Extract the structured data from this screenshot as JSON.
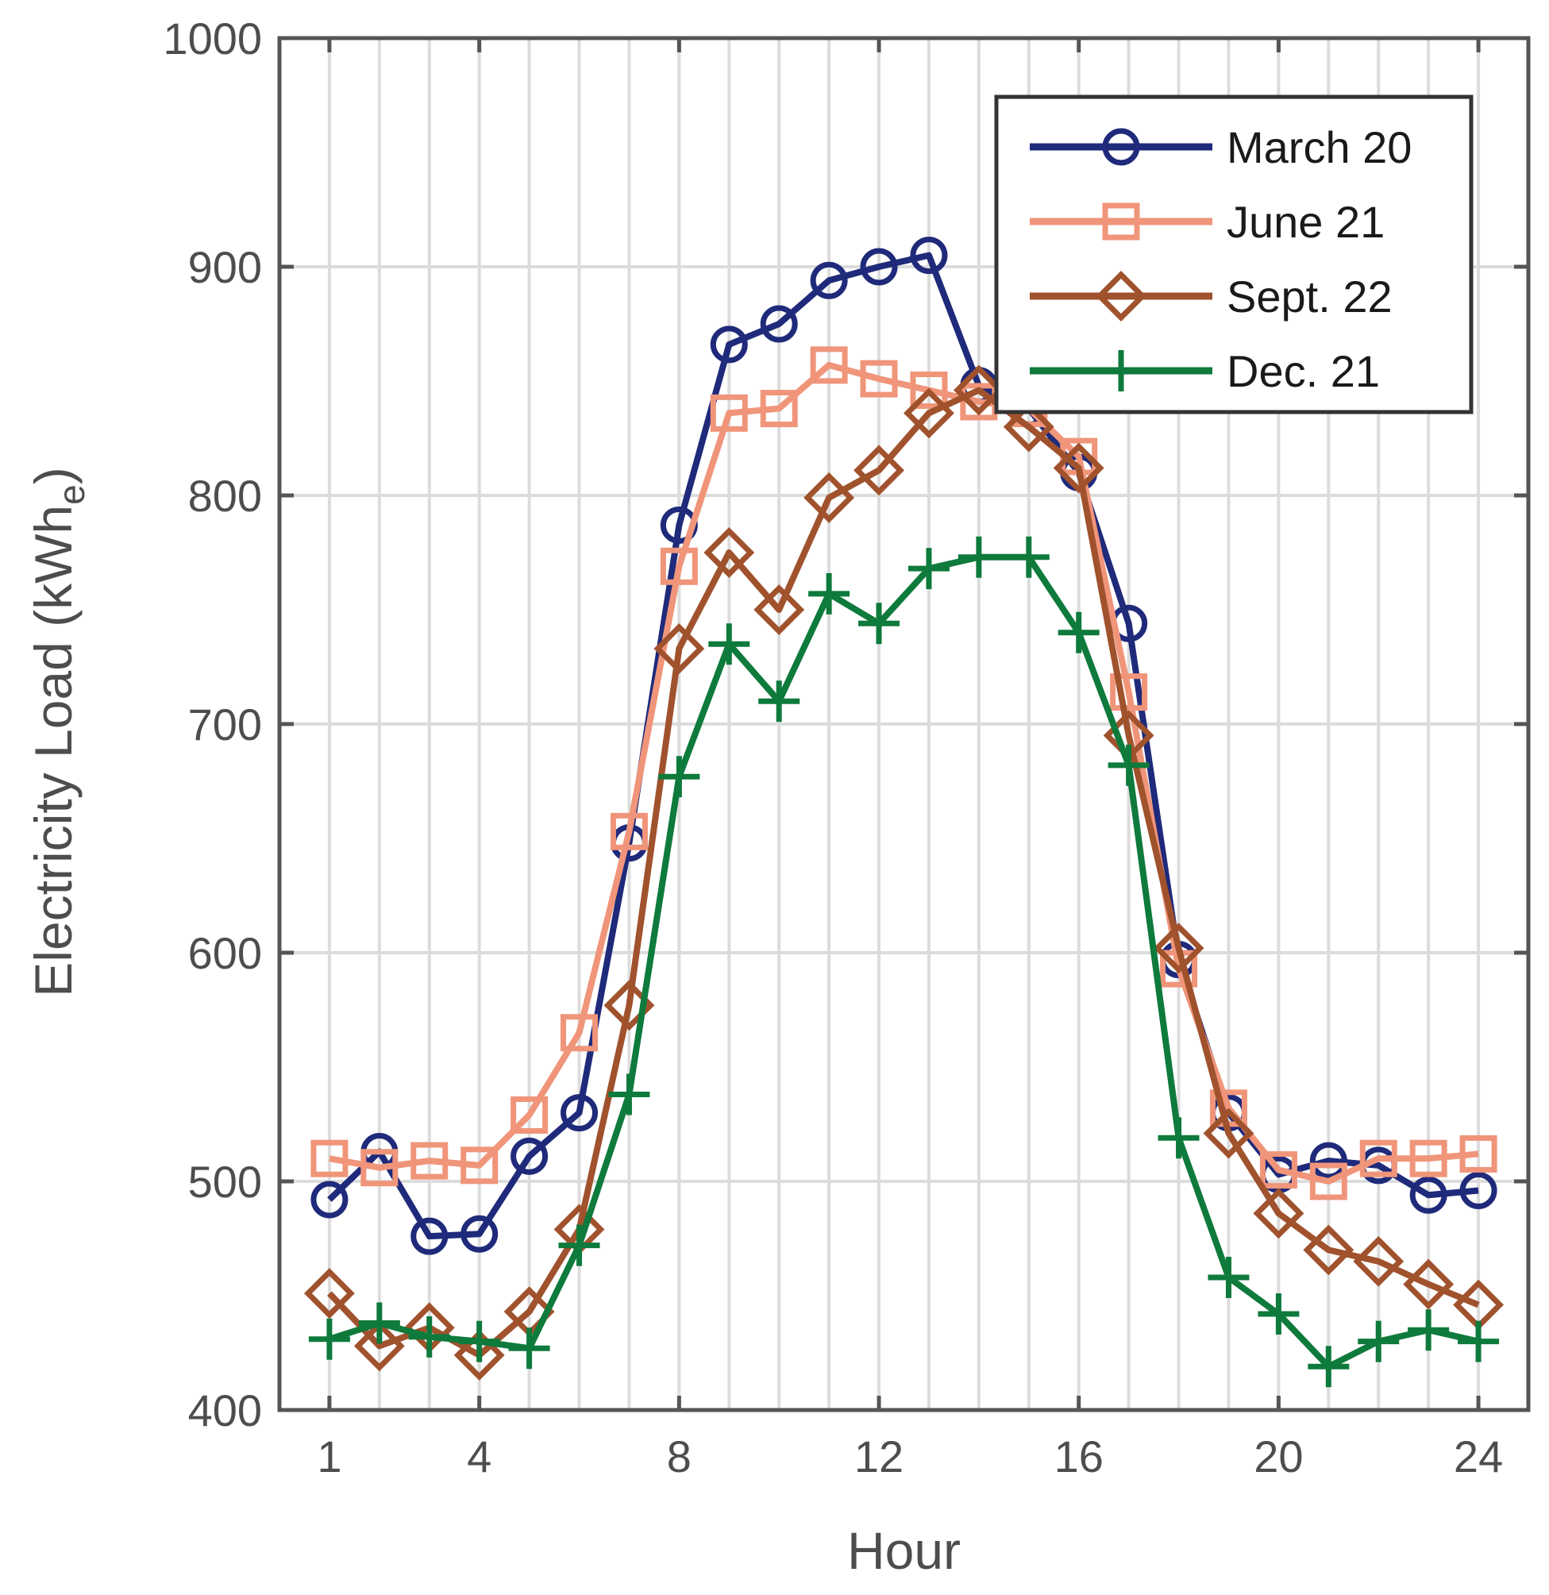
{
  "chart_data": {
    "type": "line",
    "title": "",
    "xlabel": "Hour",
    "ylabel_main": "Electricity Load (kWh",
    "ylabel_sub": "e",
    "ylabel_close": ")",
    "xlim": [
      0,
      25
    ],
    "ylim": [
      400,
      1000
    ],
    "xticks": [
      1,
      4,
      8,
      12,
      16,
      20,
      24
    ],
    "xtick_labels": [
      "1",
      "4",
      "8",
      "12",
      "16",
      "20",
      "24"
    ],
    "yticks": [
      400,
      500,
      600,
      700,
      800,
      900,
      1000
    ],
    "ytick_labels": [
      "400",
      "500",
      "600",
      "700",
      "800",
      "900",
      "1000"
    ],
    "grid": true,
    "legend_position": "top-right",
    "x": [
      1,
      2,
      3,
      4,
      5,
      6,
      7,
      8,
      9,
      10,
      11,
      12,
      13,
      14,
      15,
      16,
      17,
      18,
      19,
      20,
      21,
      22,
      23,
      24
    ],
    "series": [
      {
        "name": "March 20",
        "color": "#1f2a7a",
        "marker": "circle",
        "values": [
          492,
          513,
          476,
          477,
          511,
          530,
          648,
          787,
          866,
          875,
          894,
          900,
          905,
          848,
          838,
          810,
          744,
          597,
          530,
          503,
          509,
          507,
          494,
          496
        ]
      },
      {
        "name": "June 21",
        "color": "#f0957a",
        "marker": "square",
        "values": [
          510,
          506,
          509,
          507,
          529,
          565,
          653,
          769,
          836,
          838,
          857,
          851,
          846,
          841,
          838,
          817,
          714,
          593,
          532,
          505,
          500,
          510,
          510,
          512
        ]
      },
      {
        "name": "Sept. 22",
        "color": "#a0522d",
        "marker": "diamond",
        "values": [
          451,
          428,
          436,
          424,
          443,
          479,
          577,
          733,
          775,
          750,
          799,
          811,
          836,
          846,
          830,
          812,
          695,
          602,
          521,
          486,
          470,
          465,
          455,
          446
        ]
      },
      {
        "name": "Dec. 21",
        "color": "#0e7a3c",
        "marker": "plus",
        "values": [
          431,
          438,
          432,
          430,
          427,
          472,
          538,
          677,
          735,
          710,
          757,
          744,
          768,
          773,
          773,
          740,
          682,
          519,
          458,
          442,
          419,
          430,
          435,
          430
        ]
      }
    ]
  }
}
